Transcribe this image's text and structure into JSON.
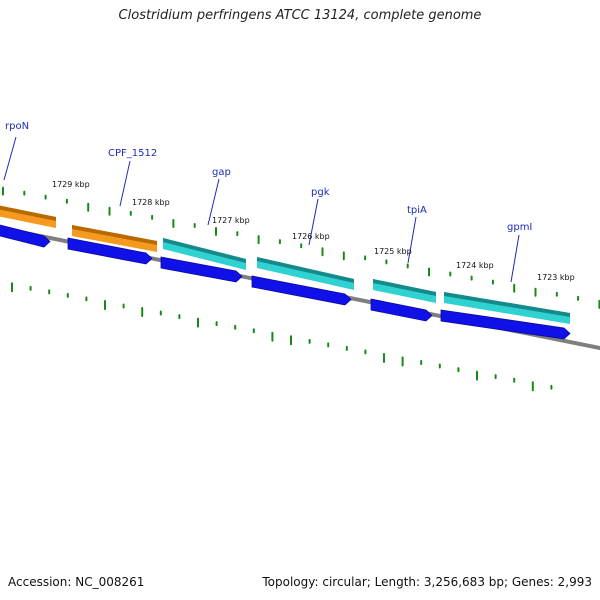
{
  "title": "Clostridium perfringens ATCC 13124, complete genome",
  "footer": {
    "accession": "Accession: NC_008261",
    "summary": "Topology: circular; Length: 3,256,683 bp; Genes: 2,993"
  },
  "genes": [
    {
      "label": "rpoN",
      "color": "orange"
    },
    {
      "label": "CPF_1512",
      "color": "orange"
    },
    {
      "label": "gap",
      "color": "cyan"
    },
    {
      "label": "pgk",
      "color": "cyan"
    },
    {
      "label": "tpiA",
      "color": "cyan"
    },
    {
      "label": "gpmI",
      "color": "cyan"
    }
  ],
  "scale_labels": [
    "1729 kbp",
    "1728 kbp",
    "1727 kbp",
    "1726 kbp",
    "1725 kbp",
    "1724 kbp",
    "1723 kbp"
  ],
  "colors": {
    "orange": "#f59a1e",
    "orange_dark": "#b86a00",
    "cyan": "#2fd1d1",
    "cyan_dark": "#168a8a",
    "blue": "#1010e8",
    "blue_dark": "#0a0a9a",
    "axis": "#7f7f7f",
    "tick": "#158a15",
    "gene_label": "#1f2bb8"
  }
}
